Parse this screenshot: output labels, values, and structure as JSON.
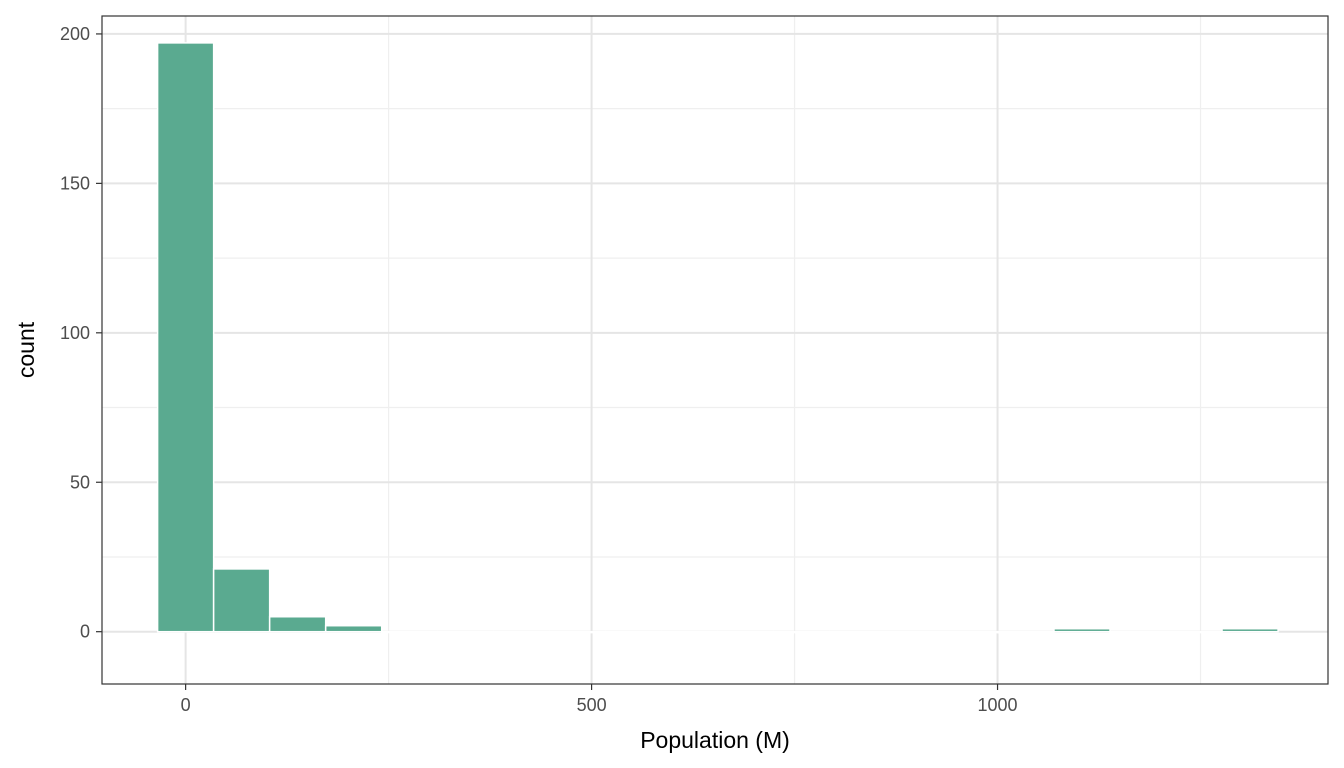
{
  "chart_data": {
    "type": "bar",
    "title": "",
    "xlabel": "Population (M)",
    "ylabel": "count",
    "xlim": [
      -103,
      1407
    ],
    "ylim": [
      -17.5,
      206
    ],
    "x_major_ticks": [
      0,
      500,
      1000
    ],
    "x_tick_labels": [
      "0",
      "500",
      "1000"
    ],
    "x_minor_ticks": [
      -250,
      250,
      750,
      1250
    ],
    "y_major_ticks": [
      0,
      50,
      100,
      150,
      200
    ],
    "y_tick_labels": [
      "0",
      "50",
      "100",
      "150",
      "200"
    ],
    "y_minor_ticks": [
      25,
      75,
      125,
      175
    ],
    "grid": true,
    "bar_color": "#5aaa90",
    "bin_width": 69,
    "bins": [
      {
        "x": 0,
        "count": 197
      },
      {
        "x": 69,
        "count": 21
      },
      {
        "x": 138,
        "count": 5
      },
      {
        "x": 207,
        "count": 2
      },
      {
        "x": 276,
        "count": 0
      },
      {
        "x": 345,
        "count": 0
      },
      {
        "x": 414,
        "count": 0
      },
      {
        "x": 483,
        "count": 0
      },
      {
        "x": 552,
        "count": 0
      },
      {
        "x": 621,
        "count": 0
      },
      {
        "x": 690,
        "count": 0
      },
      {
        "x": 759,
        "count": 0
      },
      {
        "x": 828,
        "count": 0
      },
      {
        "x": 897,
        "count": 0
      },
      {
        "x": 966,
        "count": 0
      },
      {
        "x": 1035,
        "count": 0
      },
      {
        "x": 1104,
        "count": 1
      },
      {
        "x": 1173,
        "count": 0
      },
      {
        "x": 1242,
        "count": 0
      },
      {
        "x": 1311,
        "count": 1
      }
    ]
  }
}
